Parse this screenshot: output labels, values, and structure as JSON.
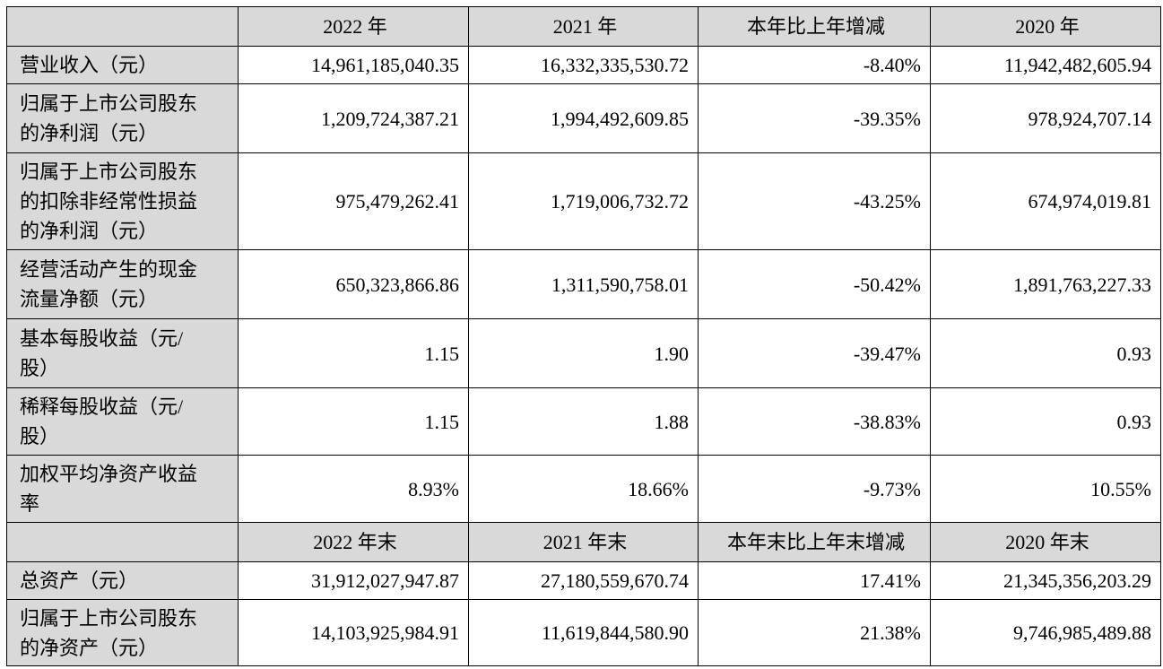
{
  "header_top": {
    "col1": "2022 年",
    "col2": "2021 年",
    "col3": "本年比上年增减",
    "col4": "2020 年"
  },
  "rows_top": [
    {
      "label_lines": [
        "营业收入（元）"
      ],
      "v2022": "14,961,185,040.35",
      "v2021": "16,332,335,530.72",
      "change": "-8.40%",
      "v2020": "11,942,482,605.94"
    },
    {
      "label_lines": [
        "归属于上市公司股东",
        "的净利润（元）"
      ],
      "v2022": "1,209,724,387.21",
      "v2021": "1,994,492,609.85",
      "change": "-39.35%",
      "v2020": "978,924,707.14"
    },
    {
      "label_lines": [
        "归属于上市公司股东",
        "的扣除非经常性损益",
        "的净利润（元）"
      ],
      "v2022": "975,479,262.41",
      "v2021": "1,719,006,732.72",
      "change": "-43.25%",
      "v2020": "674,974,019.81"
    },
    {
      "label_lines": [
        "经营活动产生的现金",
        "流量净额（元）"
      ],
      "v2022": "650,323,866.86",
      "v2021": "1,311,590,758.01",
      "change": "-50.42%",
      "v2020": "1,891,763,227.33"
    },
    {
      "label_lines": [
        "基本每股收益（元/",
        "股）"
      ],
      "v2022": "1.15",
      "v2021": "1.90",
      "change": "-39.47%",
      "v2020": "0.93"
    },
    {
      "label_lines": [
        "稀释每股收益（元/",
        "股）"
      ],
      "v2022": "1.15",
      "v2021": "1.88",
      "change": "-38.83%",
      "v2020": "0.93"
    },
    {
      "label_lines": [
        "加权平均净资产收益",
        "率"
      ],
      "v2022": "8.93%",
      "v2021": "18.66%",
      "change": "-9.73%",
      "v2020": "10.55%"
    }
  ],
  "header_bottom": {
    "col1": "2022 年末",
    "col2": "2021 年末",
    "col3": "本年末比上年末增减",
    "col4": "2020 年末"
  },
  "rows_bottom": [
    {
      "label_lines": [
        "总资产（元）"
      ],
      "v2022": "31,912,027,947.87",
      "v2021": "27,180,559,670.74",
      "change": "17.41%",
      "v2020": "21,345,356,203.29"
    },
    {
      "label_lines": [
        "归属于上市公司股东",
        "的净资产（元）"
      ],
      "v2022": "14,103,925,984.91",
      "v2021": "11,619,844,580.90",
      "change": "21.38%",
      "v2020": "9,746,985,489.88"
    }
  ]
}
